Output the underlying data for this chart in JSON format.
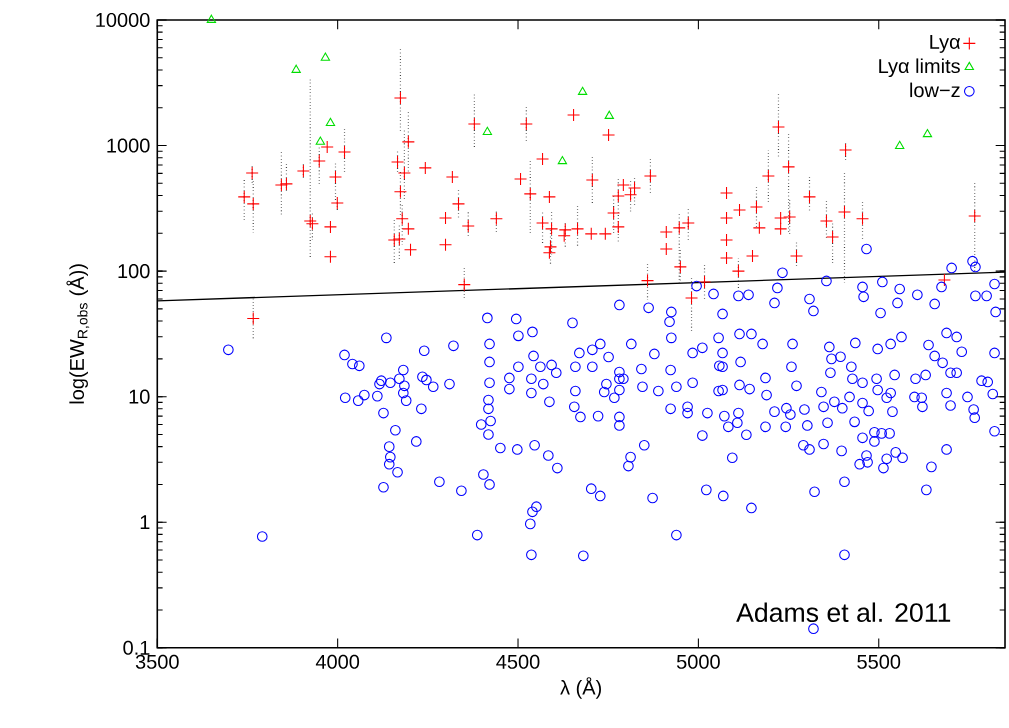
{
  "chart_data": {
    "type": "scatter",
    "xlabel": "λ (Å)",
    "ylabel": "log(EW$_{R,obs}$ (Å))",
    "log": "y",
    "xlim": [
      3500,
      5850
    ],
    "ylim": [
      0.1,
      10000
    ],
    "xticks": [
      3500,
      4000,
      4500,
      5000,
      5500
    ],
    "yticks": [
      0.1,
      1,
      10,
      100,
      1000,
      10000
    ],
    "legend": "top right",
    "annotations": [
      "Adams et al. 2011"
    ],
    "series": [
      {
        "name": "Lyα",
        "color": "#ff0000",
        "marker": "cross",
        "x": [
          3741,
          3763,
          3766,
          3844,
          3858,
          3905,
          3924,
          3930,
          3949,
          3971,
          3994,
          3999,
          3980,
          3980,
          4019,
          4174,
          4166,
          4185,
          4196,
          4174,
          4243,
          4179,
          4157,
          4171,
          4196,
          4202,
          4299,
          4299,
          3766,
          4318,
          4335,
          4362,
          4379,
          4351,
          4440,
          4507,
          4523,
          4534,
          4568,
          4587,
          4568,
          4593,
          4590,
          4587,
          4631,
          4628,
          4654,
          4665,
          4703,
          4706,
          4742,
          4751,
          4765,
          4778,
          4778,
          4792,
          4812,
          4823,
          4867,
          4911,
          4911,
          4947,
          4950,
          4972,
          4859,
          4981,
          5017,
          5078,
          5078,
          5078,
          5078,
          5114,
          5111,
          5161,
          5169,
          5150,
          5194,
          5222,
          5250,
          5228,
          5228,
          5253,
          5272,
          5308,
          5355,
          5372,
          5405,
          5408,
          5455,
          5766,
          5682
        ],
        "values": [
          390,
          605,
          343,
          485,
          495,
          628,
          251,
          238,
          753,
          975,
          562,
          349,
          225,
          130,
          889,
          2390,
          740,
          605,
          1070,
          428,
          664,
          261,
          177,
          180,
          217,
          148,
          265,
          162,
          42,
          562,
          343,
          229,
          1486,
          78,
          261,
          542,
          1486,
          412,
          782,
          390,
          242,
          217,
          156,
          140,
          213,
          191,
          1754,
          217,
          198,
          532,
          198,
          1213,
          290,
          397,
          225,
          485,
          405,
          459,
          573,
          205,
          150,
          221,
          108,
          242,
          84,
          61,
          82,
          419,
          265,
          177,
          127,
          307,
          100,
          324,
          221,
          132,
          573,
          1406,
          676,
          265,
          217,
          270,
          132,
          390,
          251,
          187,
          296,
          922,
          261,
          275,
          85
        ],
        "errors": [
          [
            247,
            532
          ],
          [
            500,
            700
          ],
          [
            201,
            532
          ],
          [
            280,
            889
          ],
          [
            419,
            726
          ],
          [
            532,
            740
          ],
          [
            127,
            3515
          ],
          [
            177,
            290
          ],
          [
            485,
            975
          ],
          null,
          [
            369,
            726
          ],
          [
            307,
            369
          ],
          null,
          null,
          [
            605,
            1380
          ],
          [
            1260,
            5880
          ],
          [
            605,
            922
          ],
          [
            369,
            1330
          ],
          [
            605,
            1850
          ],
          [
            280,
            640
          ],
          null,
          [
            162,
            337
          ],
          [
            112,
            256
          ],
          [
            123,
            233
          ],
          null,
          null,
          null,
          null,
          [
            28,
            62
          ],
          null,
          [
            256,
            459
          ],
          [
            184,
            296
          ],
          [
            957,
            2577
          ],
          [
            61,
            108
          ],
          [
            205,
            307
          ],
          null,
          [
            1050,
            2065
          ],
          [
            201,
            768
          ],
          null,
          null,
          [
            162,
            307
          ],
          [
            135,
            296
          ],
          [
            112,
            213
          ],
          null,
          [
            153,
            247
          ],
          null,
          null,
          [
            156,
            337
          ],
          null,
          [
            349,
            811
          ],
          null,
          null,
          [
            201,
            405
          ],
          [
            171,
            552
          ],
          null,
          null,
          [
            296,
            532
          ],
          [
            337,
            573
          ],
          [
            419,
            811
          ],
          null,
          null,
          [
            81,
            296
          ],
          [
            81,
            148
          ],
          [
            177,
            318
          ],
          [
            59,
            116
          ],
          [
            32,
            90
          ],
          [
            59,
            112
          ],
          null,
          null,
          null,
          null,
          null,
          [
            71,
            127
          ],
          [
            225,
            468
          ],
          null,
          null,
          [
            349,
            922
          ],
          [
            796,
            2670
          ],
          [
            201,
            1260
          ],
          null,
          null,
          [
            194,
            369
          ],
          [
            108,
            168
          ],
          [
            290,
            562
          ],
          [
            177,
            369
          ],
          [
            115,
            247
          ],
          [
            81,
            617
          ],
          [
            768,
            1050
          ],
          [
            177,
            369
          ],
          [
            97,
            504
          ],
          null
        ]
      },
      {
        "name": "Lyα limits",
        "color": "#00dd00",
        "marker": "triangle",
        "x": [
          3650,
          3885,
          3966,
          3980,
          3952,
          4415,
          4623,
          4679,
          4753,
          5558,
          5635
        ],
        "values": [
          10000,
          4000,
          5000,
          1510,
          1070,
          1280,
          750,
          2670,
          1720,
          990,
          1230
        ]
      },
      {
        "name": "low−z",
        "color": "#0000ff",
        "marker": "circle",
        "x": [
          3697,
          3791,
          4019,
          4041,
          4060,
          4021,
          4057,
          4074,
          4110,
          4121,
          4116,
          4135,
          4146,
          4171,
          4182,
          4185,
          4182,
          4190,
          4127,
          4160,
          4143,
          4146,
          4143,
          4166,
          4127,
          4218,
          4235,
          4240,
          4246,
          4265,
          4232,
          4282,
          4310,
          4321,
          4343,
          4387,
          4404,
          4421,
          4421,
          4421,
          4421,
          4418,
          4418,
          4424,
          4398,
          4418,
          4451,
          4476,
          4476,
          4501,
          4501,
          4498,
          4540,
          4543,
          4537,
          4537,
          4546,
          4551,
          4540,
          4534,
          4537,
          4562,
          4570,
          4587,
          4593,
          4606,
          4584,
          4609,
          4659,
          4659,
          4656,
          4673,
          4670,
          4681,
          4706,
          4706,
          4728,
          4722,
          4703,
          4728,
          4751,
          4745,
          4739,
          4767,
          4781,
          4781,
          4781,
          4781,
          4781,
          4792,
          4812,
          4806,
          4814,
          4842,
          4845,
          4850,
          4873,
          4889,
          4878,
          4923,
          4923,
          4939,
          4939,
          4970,
          4970,
          4984,
          4984,
          5025,
          5011,
          5022,
          5069,
          5056,
          5058,
          5056,
          5072,
          5011,
          4925,
          4781,
          4862,
          4925,
          4995,
          5042,
          5067,
          4415,
          4495,
          4651,
          4920,
          5466,
          5233,
          5355,
          5702,
          5760,
          5768,
          5510,
          5558,
          5821,
          5111,
          5139,
          5219,
          5308,
          5455,
          5458,
          5607,
          5674,
          5768,
          5552,
          5824,
          5211,
          5319,
          5505,
          5655,
          5799,
          5147,
          5094,
          5133,
          5117,
          5114,
          5111,
          5108,
          5083,
          5142,
          5178,
          5186,
          5189,
          5186,
          5211,
          5244,
          5255,
          5242,
          5258,
          5272,
          5261,
          5294,
          5302,
          5291,
          5308,
          5322,
          5319,
          5347,
          5341,
          5347,
          5358,
          5366,
          5369,
          5363,
          5377,
          5399,
          5397,
          5405,
          5405,
          5394,
          5419,
          5433,
          5424,
          5427,
          5435,
          5455,
          5447,
          5466,
          5469,
          5455,
          5472,
          5455,
          5488,
          5488,
          5497,
          5494,
          5497,
          5508,
          5513,
          5522,
          5522,
          5533,
          5538,
          5530,
          5547,
          5566,
          5544,
          5563,
          5533,
          5599,
          5619,
          5621,
          5602,
          5630,
          5632,
          5646,
          5638,
          5655,
          5677,
          5688,
          5699,
          5688,
          5699,
          5716,
          5730,
          5746,
          5763,
          5766,
          5785,
          5802,
          5816,
          5821,
          5821,
          5688,
          5716,
          5067,
          5067,
          5067,
          5114,
          5147
        ],
        "values": [
          23.6,
          0.77,
          21.5,
          18.2,
          17.6,
          9.8,
          9.3,
          10.3,
          10.1,
          13.4,
          12.6,
          29.4,
          12.9,
          13.9,
          16.3,
          12.2,
          10.7,
          9.3,
          7.4,
          5.4,
          4.0,
          3.3,
          2.9,
          2.5,
          1.9,
          4.4,
          14.4,
          23.2,
          13.6,
          12.0,
          8.0,
          2.1,
          12.6,
          25.4,
          1.78,
          0.79,
          2.4,
          2.0,
          26.3,
          18.9,
          12.9,
          9.4,
          8.0,
          6.4,
          6.0,
          5.0,
          3.9,
          14.1,
          11.5,
          30.5,
          17.3,
          3.8,
          32.8,
          21.1,
          13.9,
          10.7,
          4.1,
          1.33,
          1.21,
          0.97,
          0.55,
          17.3,
          12.6,
          9.1,
          17.9,
          15.5,
          3.4,
          2.7,
          17.3,
          11.1,
          8.3,
          6.9,
          22.3,
          0.54,
          23.6,
          17.3,
          26.3,
          7.0,
          1.85,
          1.62,
          20.7,
          12.6,
          10.9,
          9.8,
          15.7,
          13.9,
          6.9,
          5.9,
          11.3,
          13.9,
          3.3,
          2.8,
          26.3,
          16.6,
          12.0,
          4.1,
          1.56,
          11.1,
          21.9,
          16.3,
          8.0,
          12.0,
          0.79,
          8.3,
          7.4,
          12.9,
          22.3,
          7.4,
          4.9,
          1.81,
          1.62,
          11.1,
          17.6,
          29.4,
          7.0,
          24.5,
          29.4,
          53.8,
          51,
          47.3,
          76,
          65.8,
          45.6,
          42.4,
          41.6,
          38.7,
          39.5,
          150,
          96.9,
          83.5,
          106,
          120,
          108,
          82,
          72,
          79,
          63.5,
          64.7,
          73.5,
          60,
          74.8,
          62.4,
          64.7,
          74.8,
          63.5,
          55.8,
          47.3,
          55.8,
          48.2,
          46.4,
          54.8,
          63.5,
          1.3,
          3.26,
          4.97,
          18.9,
          12.4,
          7.4,
          6.2,
          5.75,
          11.5,
          26.3,
          14.1,
          10.3,
          5.75,
          7.6,
          8.1,
          7.2,
          5.75,
          17.3,
          12.2,
          26.3,
          7.9,
          5.9,
          4.1,
          3.8,
          1.75,
          0.142,
          4.2,
          10.9,
          8.3,
          6.2,
          15.5,
          20.0,
          24.9,
          9.1,
          8.1,
          3.7,
          2.1,
          0.55,
          20.8,
          9.95,
          6.3,
          17.3,
          13.9,
          26.8,
          4.7,
          2.9,
          3.4,
          3.0,
          8.9,
          7.7,
          12.9,
          4.4,
          5.2,
          11.3,
          13.9,
          24.0,
          5.1,
          2.7,
          3.2,
          9.8,
          10.7,
          7.6,
          5.1,
          3.6,
          3.26,
          14.9,
          29.9,
          26.3,
          9.95,
          9.8,
          8.3,
          13.9,
          14.9,
          1.81,
          2.76,
          25.8,
          21.1,
          18.6,
          10.7,
          8.5,
          3.8,
          15.5,
          15.5,
          22.8,
          9.95,
          7.9,
          6.8,
          13.4,
          13.1,
          10.5,
          5.3,
          22.3,
          32.2,
          29.9,
          11.3,
          22.3,
          17.3,
          31.6,
          31.6
        ]
      },
      {
        "type": "line",
        "color": "#000000",
        "line_style": "solid",
        "x": [
          3500,
          5850
        ],
        "values": [
          58,
          98
        ]
      }
    ]
  }
}
